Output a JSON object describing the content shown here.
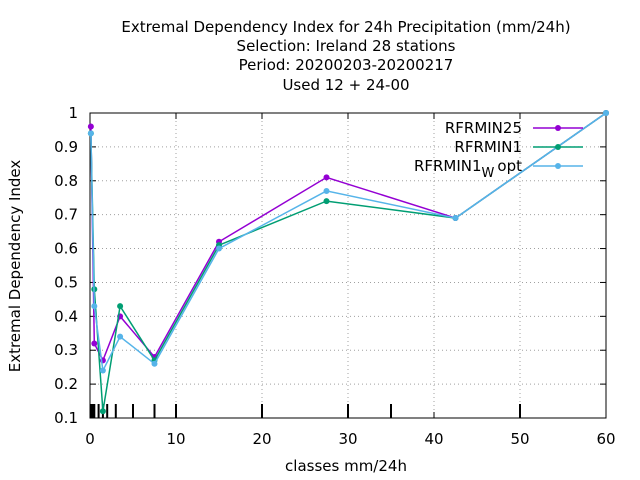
{
  "chart_data": {
    "type": "line",
    "title_lines": [
      "Extremal Dependency Index  for 24h Precipitation (mm/24h)",
      "Selection: Ireland      28 stations",
      "Period: 20200203-20200217",
      "Used  12 + 24-00"
    ],
    "xlabel": "classes mm/24h",
    "ylabel": "Extremal Dependency Index",
    "xlim": [
      0,
      60
    ],
    "ylim": [
      0.1,
      1.0
    ],
    "xticks": [
      0,
      10,
      20,
      30,
      40,
      50,
      60
    ],
    "yticks": [
      0.1,
      0.2,
      0.3,
      0.4,
      0.5,
      0.6,
      0.7,
      0.8,
      0.9,
      1.0
    ],
    "ytick_labels": [
      "0.1",
      "0.2",
      "0.3",
      "0.4",
      "0.5",
      "0.6",
      "0.7",
      "0.8",
      "0.9",
      "1"
    ],
    "grid": true,
    "legend_position": "top-right",
    "class_markers_x": [
      0.1,
      0.2,
      0.3,
      0.5,
      1.0,
      1.5,
      2,
      3,
      5,
      7.5,
      10,
      20,
      30,
      35,
      50
    ],
    "series": [
      {
        "name": "RFRMIN25",
        "color": "#9400d3",
        "x": [
          0.1,
          0.5,
          1.5,
          3.5,
          7.5,
          15,
          27.5,
          42.5,
          60
        ],
        "y": [
          0.96,
          0.32,
          0.27,
          0.4,
          0.28,
          0.62,
          0.81,
          0.69,
          1.0
        ]
      },
      {
        "name": "RFRMIN1",
        "color": "#009e73",
        "x": [
          0.1,
          0.5,
          1.5,
          3.5,
          7.5,
          15,
          27.5,
          42.5,
          60
        ],
        "y": [
          0.94,
          0.48,
          0.12,
          0.43,
          0.27,
          0.61,
          0.74,
          0.69,
          1.0
        ]
      },
      {
        "name_main": "RFRMIN1",
        "name_sub": "W",
        "name_tail": "opt",
        "color": "#56b4e9",
        "x": [
          0.1,
          0.5,
          1.5,
          3.5,
          7.5,
          15,
          27.5,
          42.5,
          60
        ],
        "y": [
          0.94,
          0.43,
          0.24,
          0.34,
          0.26,
          0.6,
          0.77,
          0.69,
          1.0
        ]
      }
    ]
  }
}
